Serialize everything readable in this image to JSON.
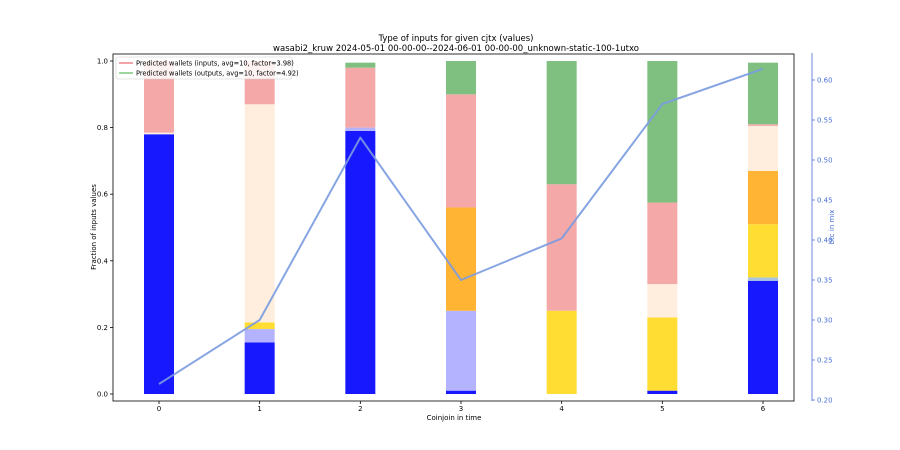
{
  "chart_data": {
    "type": "bar",
    "stacked": true,
    "title": "Type of inputs for given cjtx (values)",
    "subtitle": "wasabi2_kruw 2024-05-01 00-00-00--2024-06-01 00-00-00_unknown-static-100-1utxo",
    "xlabel": "Coinjoin in time",
    "ylabel": "Fraction of inputs values",
    "y2label": "btc in mix",
    "categories": [
      "0",
      "1",
      "2",
      "3",
      "4",
      "5",
      "6"
    ],
    "ylim": [
      0,
      1.0
    ],
    "y2lim": [
      0.2,
      0.64
    ],
    "yticks": [
      "0.0",
      "0.2",
      "0.4",
      "0.6",
      "0.8",
      "1.0"
    ],
    "y2ticks": [
      "0.20",
      "0.25",
      "0.30",
      "0.35",
      "0.40",
      "0.45",
      "0.50",
      "0.55",
      "0.60"
    ],
    "grid": false,
    "legend_position": "top-left",
    "legend": [
      {
        "label": "Predicted wallets (inputs, avg=10, factor=3.98)",
        "color": "#e8676b"
      },
      {
        "label": "Predicted wallets (outputs, avg=10, factor=4.92)",
        "color": "#5cb85c"
      }
    ],
    "series": [
      {
        "color": "#1818ff",
        "values": [
          0.78,
          0.155,
          0.79,
          0.01,
          0.0,
          0.01,
          0.34
        ]
      },
      {
        "color": "#b3b3ff",
        "values": [
          0.0,
          0.04,
          0.01,
          0.24,
          0.0,
          0.0,
          0.0
        ]
      },
      {
        "color": "#a8c4e0",
        "values": [
          0.0,
          0.0,
          0.0,
          0.0,
          0.0,
          0.0,
          0.01
        ]
      },
      {
        "color": "#ffdd33",
        "values": [
          0.0,
          0.02,
          0.0,
          0.0,
          0.25,
          0.22,
          0.16
        ]
      },
      {
        "color": "#ffb533",
        "values": [
          0.0,
          0.0,
          0.0,
          0.31,
          0.0,
          0.0,
          0.16
        ]
      },
      {
        "color": "#ffeedd",
        "values": [
          0.005,
          0.655,
          0.0,
          0.0,
          0.0,
          0.1,
          0.135
        ]
      },
      {
        "color": "#f4a8a8",
        "values": [
          0.215,
          0.13,
          0.18,
          0.34,
          0.38,
          0.245,
          0.005
        ]
      },
      {
        "color": "#7fbf7f",
        "values": [
          0.0,
          0.0,
          0.015,
          0.1,
          0.37,
          0.425,
          0.185
        ]
      }
    ],
    "line": {
      "color": "#7b9be0",
      "values": [
        0.22,
        0.3,
        0.528,
        0.35,
        0.402,
        0.57,
        0.614
      ]
    }
  }
}
